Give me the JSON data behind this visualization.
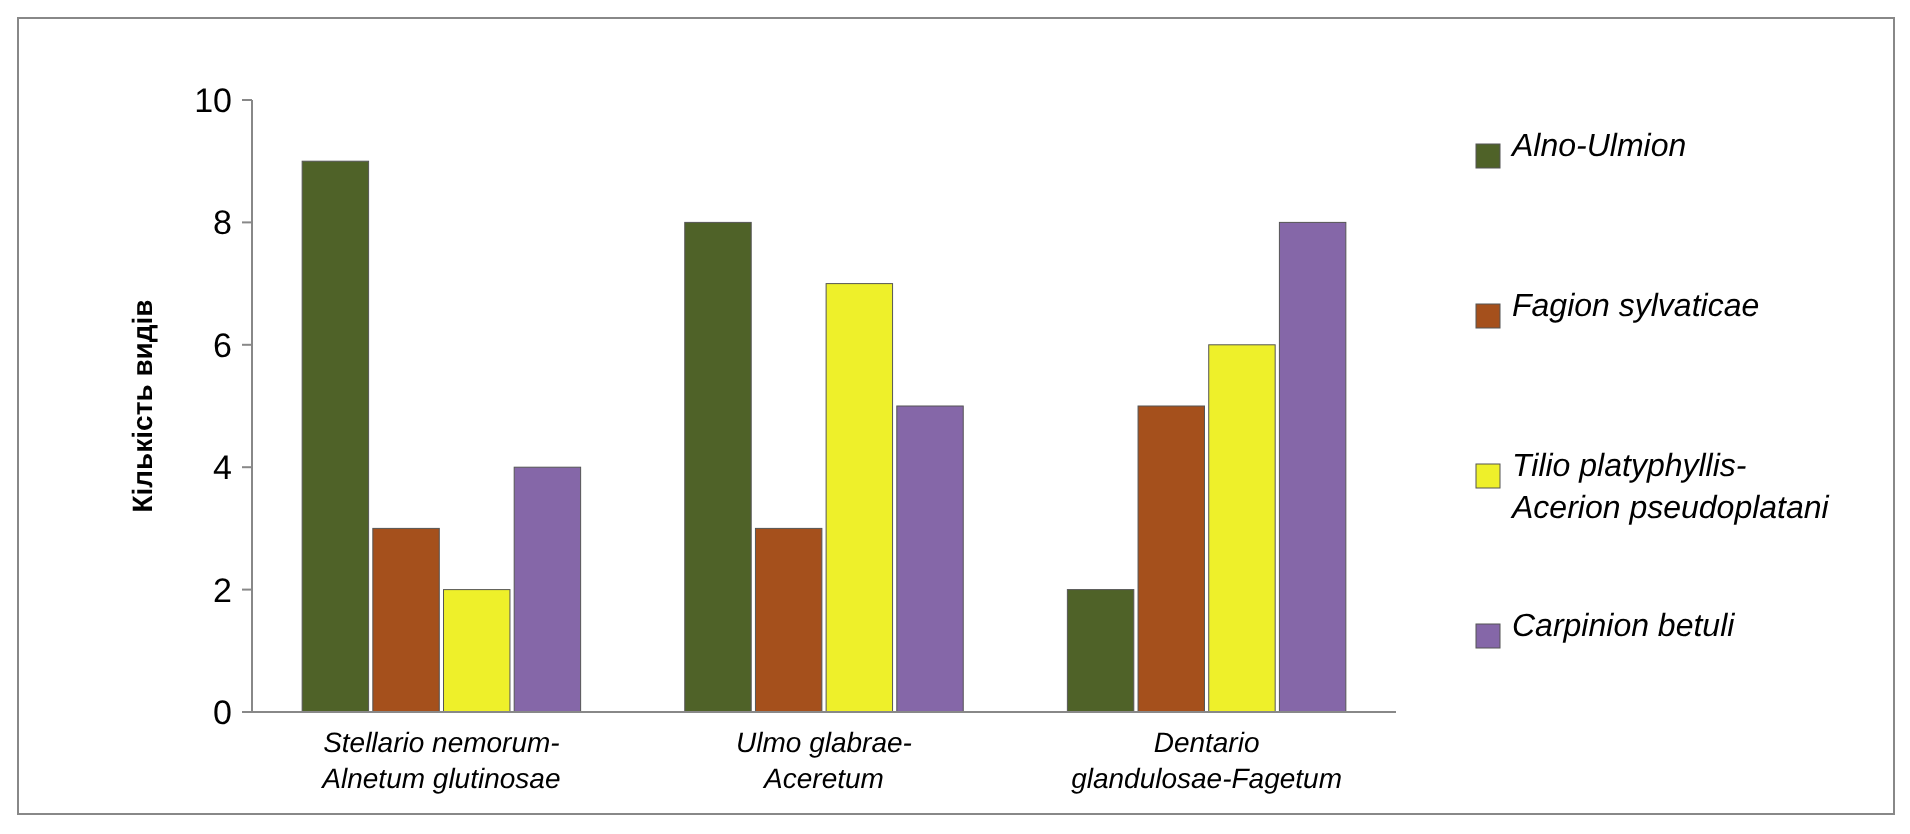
{
  "chart_data": {
    "type": "bar",
    "ylabel": "Кількість видів",
    "categories": [
      "Stellario nemorum-\nAlnetum glutinosae",
      "Ulmo glabrae-\nAceretum",
      "Dentario\nglandulosae-Fagetum"
    ],
    "series": [
      {
        "name": "Alno-Ulmion",
        "color": "#4f6228",
        "values": [
          9,
          8,
          2
        ]
      },
      {
        "name": "Fagion sylvaticae",
        "color": "#a5501c",
        "values": [
          3,
          3,
          5
        ]
      },
      {
        "name": "Tilio platyphyllis-\nAcerion pseudoplatani",
        "color": "#eef02a",
        "values": [
          2,
          7,
          6
        ]
      },
      {
        "name": "Carpinion betuli",
        "color": "#8567a8",
        "values": [
          4,
          5,
          8
        ]
      }
    ],
    "ylim": [
      0,
      10
    ],
    "yticks": [
      0,
      2,
      4,
      6,
      8,
      10
    ],
    "grid": false,
    "legend": "right"
  }
}
